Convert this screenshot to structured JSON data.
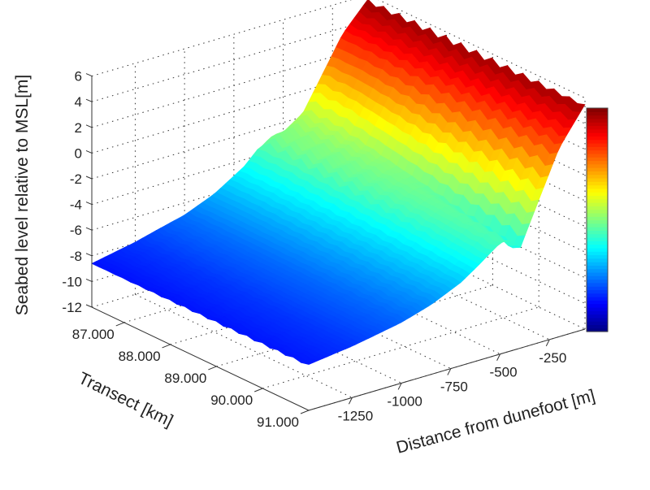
{
  "chart_data": {
    "type": "surface",
    "title": "",
    "xlabel": "Transect [km]",
    "ylabel": "Distance from dunefoot [m]",
    "zlabel": "Seabed level relative to MSL[m]",
    "x_range": [
      86.3,
      91.0
    ],
    "y_range": [
      -1470,
      -70
    ],
    "z_range": [
      -12,
      6
    ],
    "color_range": [
      -11,
      6
    ],
    "colormap": "jet",
    "grid": true,
    "colorbar": "right",
    "x_ticks": [
      "87.000",
      "88.000",
      "89.000",
      "90.000",
      "91.000"
    ],
    "x_tick_values": [
      87,
      88,
      89,
      90,
      91
    ],
    "y_ticks": [
      "-1250",
      "-1000",
      "-750",
      "-500",
      "-250"
    ],
    "y_tick_values": [
      -1250,
      -1000,
      -750,
      -500,
      -250
    ],
    "z_ticks": [
      "6",
      "4",
      "2",
      "0",
      "-2",
      "-4",
      "-6",
      "-8",
      "-10",
      "-12"
    ],
    "z_tick_values": [
      6,
      4,
      2,
      0,
      -2,
      -4,
      -6,
      -8,
      -10,
      -12
    ],
    "profile_distance": [
      -1470,
      -1250,
      -1000,
      -850,
      -700,
      -600,
      -550,
      -500,
      -450,
      -400,
      -300,
      -200,
      -70
    ],
    "profile_at_transect_87": [
      -8.6,
      -8.0,
      -7.0,
      -6.0,
      -4.5,
      -3.0,
      -2.5,
      -2.5,
      -2.0,
      -1.5,
      1.0,
      3.5,
      5.5
    ],
    "profile_at_transect_91": [
      -8.5,
      -8.0,
      -7.2,
      -6.5,
      -5.5,
      -4.5,
      -4.0,
      -3.5,
      -3.5,
      -4.5,
      -1.0,
      2.5,
      5.4
    ]
  }
}
